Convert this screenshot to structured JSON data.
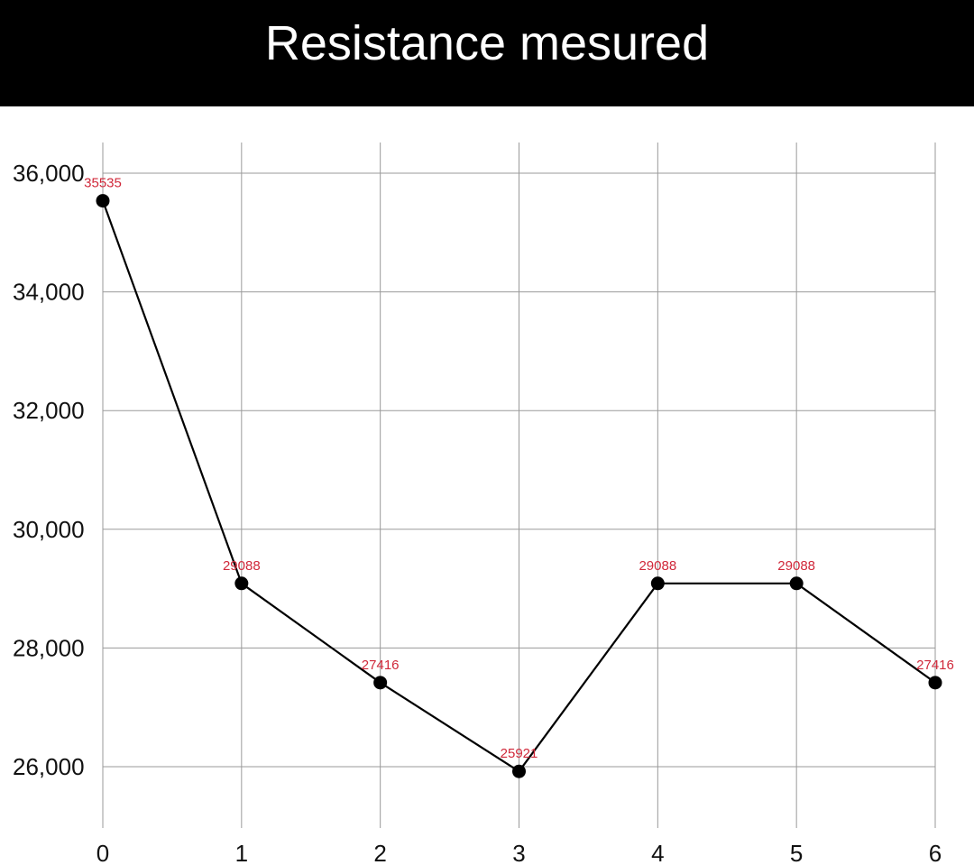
{
  "title": "Resistance mesured",
  "colors": {
    "title_background": "#000000",
    "title_text": "#ffffff",
    "grid": "#9a9a9a",
    "line": "#000000",
    "marker": "#000000",
    "data_label": "#d0283a",
    "tick_label": "#111111"
  },
  "chart_data": {
    "type": "line",
    "title": "Resistance mesured",
    "xlabel": "",
    "ylabel": "",
    "x": [
      0,
      1,
      2,
      3,
      4,
      5,
      6
    ],
    "x_tick_labels": [
      "0",
      "1",
      "2",
      "3",
      "4",
      "5",
      "6"
    ],
    "y_tick_values": [
      26000,
      28000,
      30000,
      32000,
      34000,
      36000
    ],
    "y_tick_labels": [
      "26,000",
      "28,000",
      "30,000",
      "32,000",
      "34,000",
      "36,000"
    ],
    "ylim": [
      25000,
      36500
    ],
    "xlim": [
      0,
      6
    ],
    "grid": true,
    "legend": "none",
    "series": [
      {
        "values": [
          35535,
          29088,
          27416,
          25921,
          29088,
          29088,
          27416
        ],
        "data_labels": [
          "35535",
          "29088",
          "27416",
          "25921",
          "29088",
          "29088",
          "27416"
        ],
        "markers": true
      }
    ]
  }
}
